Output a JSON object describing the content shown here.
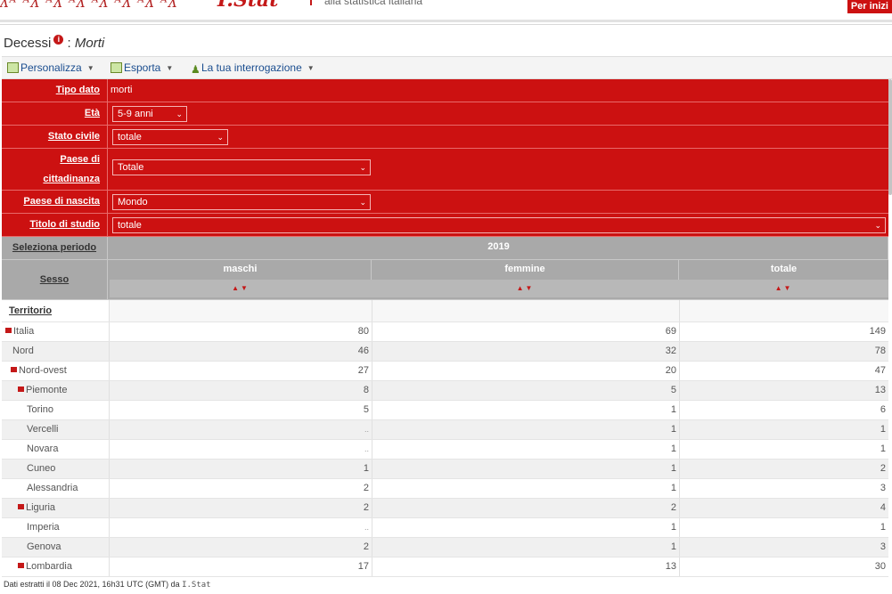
{
  "header": {
    "logo_mark": "I.Stat",
    "tagline": "alla statistica italiana",
    "start_button": "Per inizi"
  },
  "title": {
    "main": "Decessi",
    "info": "i",
    "separator": ":",
    "sub": "Morti"
  },
  "toolbar": [
    {
      "label": "Personalizza",
      "icon": "customize-icon"
    },
    {
      "label": "Esporta",
      "icon": "export-icon"
    },
    {
      "label": "La tua interrogazione",
      "icon": "user-query-icon"
    }
  ],
  "filters": [
    {
      "label": "Tipo dato",
      "value": "morti",
      "select": false
    },
    {
      "label": "Età",
      "value": "5-9 anni",
      "select": true
    },
    {
      "label": "Stato civile",
      "value": "totale",
      "select": true
    },
    {
      "label": "Paese di cittadinanza",
      "value": "Totale",
      "select": true
    },
    {
      "label": "Paese di nascita",
      "value": "Mondo",
      "select": true
    },
    {
      "label": "Titolo di studio",
      "value": "totale",
      "select": true
    }
  ],
  "period": {
    "label": "Seleziona periodo",
    "year": "2019"
  },
  "sex": {
    "label": "Sesso",
    "columns": [
      "maschi",
      "femmine",
      "totale"
    ]
  },
  "territory_label": "Territorio",
  "rows": [
    {
      "name": "Italia",
      "level": 0,
      "collapse": true,
      "values": [
        "80",
        "69",
        "149"
      ]
    },
    {
      "name": "Nord",
      "level": 1,
      "collapse": false,
      "values": [
        "46",
        "32",
        "78"
      ]
    },
    {
      "name": "Nord-ovest",
      "level": 2,
      "collapse": true,
      "values": [
        "27",
        "20",
        "47"
      ]
    },
    {
      "name": "Piemonte",
      "level": 3,
      "collapse": true,
      "values": [
        "8",
        "5",
        "13"
      ]
    },
    {
      "name": "Torino",
      "level": 4,
      "collapse": false,
      "values": [
        "5",
        "1",
        "6"
      ]
    },
    {
      "name": "Vercelli",
      "level": 4,
      "collapse": false,
      "values": [
        "..",
        "1",
        "1"
      ]
    },
    {
      "name": "Novara",
      "level": 4,
      "collapse": false,
      "values": [
        "..",
        "1",
        "1"
      ]
    },
    {
      "name": "Cuneo",
      "level": 4,
      "collapse": false,
      "values": [
        "1",
        "1",
        "2"
      ]
    },
    {
      "name": "Alessandria",
      "level": 4,
      "collapse": false,
      "values": [
        "2",
        "1",
        "3"
      ]
    },
    {
      "name": "Liguria",
      "level": 3,
      "collapse": true,
      "values": [
        "2",
        "2",
        "4"
      ]
    },
    {
      "name": "Imperia",
      "level": 4,
      "collapse": false,
      "values": [
        "..",
        "1",
        "1"
      ]
    },
    {
      "name": "Genova",
      "level": 4,
      "collapse": false,
      "values": [
        "2",
        "1",
        "3"
      ]
    },
    {
      "name": "Lombardia",
      "level": 3,
      "collapse": true,
      "values": [
        "17",
        "13",
        "30"
      ]
    }
  ],
  "footer": {
    "text": "Dati estratti il 08 Dec 2021, 16h31 UTC (GMT) da",
    "brand": "I.Stat"
  }
}
